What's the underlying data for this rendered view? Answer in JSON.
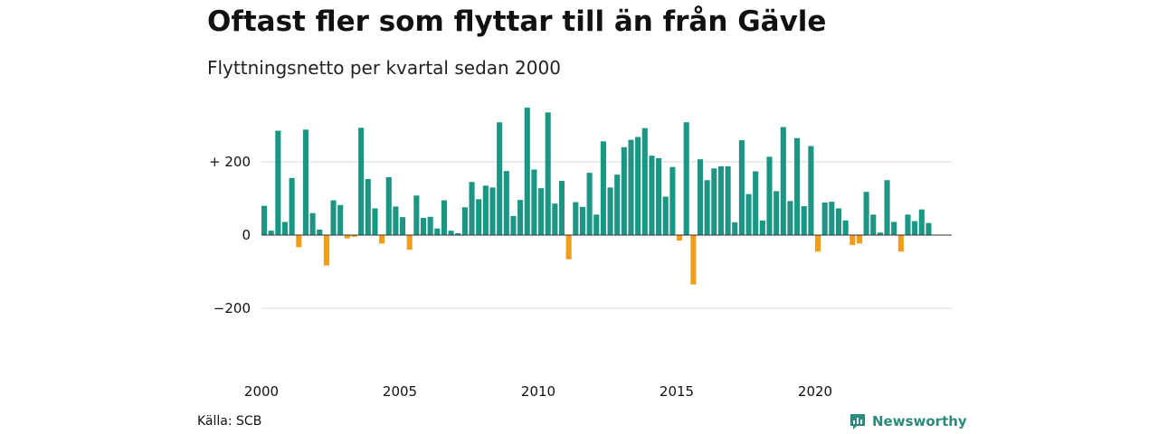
{
  "chart_data": {
    "type": "bar",
    "title": "Oftast fler som flyttar till än från Gävle",
    "subtitle": "Flyttningsnetto per kvartal sedan 2000",
    "ylim": [
      -340,
      360
    ],
    "grid": true,
    "y_ticks": [
      {
        "value": 200,
        "label": "+ 200"
      },
      {
        "value": 0,
        "label": "0"
      },
      {
        "value": -200,
        "label": "−200"
      }
    ],
    "x_ticks": [
      {
        "value": 2000,
        "label": "2000"
      },
      {
        "value": 2005,
        "label": "2005"
      },
      {
        "value": 2010,
        "label": "2010"
      },
      {
        "value": 2015,
        "label": "2015"
      },
      {
        "value": 2020,
        "label": "2020"
      }
    ],
    "x_start": 2000,
    "period": "quarter",
    "colors": {
      "positive": "#1a9683",
      "negative": "#f39c1a"
    },
    "values": [
      80,
      12,
      285,
      36,
      156,
      -33,
      288,
      60,
      15,
      -83,
      95,
      82,
      -9,
      -5,
      293,
      153,
      73,
      -23,
      158,
      78,
      49,
      -40,
      108,
      47,
      50,
      18,
      95,
      12,
      5,
      76,
      145,
      98,
      135,
      130,
      308,
      175,
      52,
      96,
      348,
      179,
      128,
      335,
      86,
      148,
      -66,
      90,
      77,
      170,
      56,
      256,
      130,
      165,
      240,
      260,
      268,
      292,
      217,
      210,
      105,
      186,
      -15,
      308,
      -135,
      207,
      150,
      182,
      188,
      188,
      35,
      259,
      112,
      174,
      40,
      214,
      120,
      295,
      93,
      265,
      79,
      243,
      -45,
      89,
      91,
      73,
      40,
      -27,
      -23,
      118,
      56,
      7,
      150,
      36,
      -45,
      56,
      38,
      70,
      33
    ]
  },
  "footer": {
    "source": "Källa: SCB",
    "brand": "Newsworthy"
  }
}
